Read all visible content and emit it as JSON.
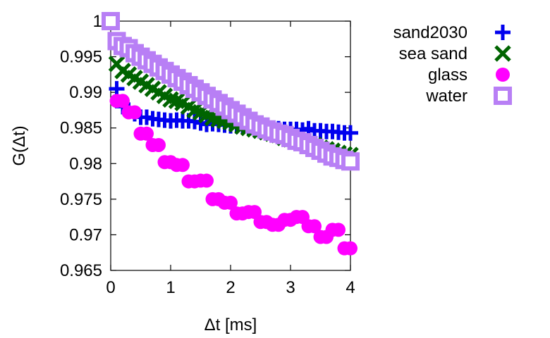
{
  "chart_data": {
    "type": "scatter",
    "title": "",
    "xlabel": "Δt [ms]",
    "ylabel": "G(Δt)",
    "xlim": [
      0,
      4
    ],
    "ylim": [
      0.965,
      1.0
    ],
    "xticks": [
      "0",
      "1",
      "2",
      "3",
      "4"
    ],
    "xtick_values": [
      0,
      1,
      2,
      3,
      4
    ],
    "yticks": [
      "0.965",
      "0.97",
      "0.975",
      "0.98",
      "0.985",
      "0.99",
      "0.995",
      "1"
    ],
    "ytick_values": [
      0.965,
      0.97,
      0.975,
      0.98,
      0.985,
      0.99,
      0.995,
      1.0
    ],
    "grid": false,
    "legend_position": "outside-right",
    "series": [
      {
        "name": "sand2030",
        "color": "#0000ee",
        "marker": "plus",
        "x": [
          0,
          0.1,
          0.2,
          0.3,
          0.4,
          0.5,
          0.6,
          0.7,
          0.8,
          0.9,
          1.0,
          1.1,
          1.2,
          1.3,
          1.4,
          1.5,
          1.6,
          1.7,
          1.8,
          1.9,
          2.0,
          2.1,
          2.2,
          2.3,
          2.4,
          2.5,
          2.6,
          2.7,
          2.8,
          2.9,
          3.0,
          3.1,
          3.2,
          3.3,
          3.4,
          3.5,
          3.6,
          3.7,
          3.8,
          3.9,
          4.0
        ],
        "y": [
          1.0,
          0.9905,
          0.988,
          0.9875,
          0.987,
          0.9865,
          0.9865,
          0.9863,
          0.9862,
          0.9861,
          0.986,
          0.9861,
          0.986,
          0.986,
          0.9859,
          0.9857,
          0.9855,
          0.9856,
          0.9855,
          0.9854,
          0.9853,
          0.9853,
          0.9852,
          0.9851,
          0.985,
          0.985,
          0.985,
          0.9849,
          0.9849,
          0.9848,
          0.9848,
          0.9848,
          0.9847,
          0.9849,
          0.9846,
          0.9846,
          0.9845,
          0.9845,
          0.9844,
          0.9843,
          0.9843
        ]
      },
      {
        "name": "sea sand",
        "color": "#006400",
        "marker": "cross",
        "x": [
          0,
          0.1,
          0.2,
          0.3,
          0.4,
          0.5,
          0.6,
          0.7,
          0.8,
          0.9,
          1.0,
          1.1,
          1.2,
          1.3,
          1.4,
          1.5,
          1.6,
          1.7,
          1.8,
          1.9,
          2.0,
          2.1,
          2.2,
          2.3,
          2.4,
          2.5,
          2.6,
          2.7,
          2.8,
          2.9,
          3.0,
          3.1,
          3.2,
          3.3,
          3.4,
          3.5,
          3.6,
          3.7,
          3.8,
          3.9,
          4.0
        ],
        "y": [
          1.0,
          0.994,
          0.993,
          0.9925,
          0.992,
          0.9915,
          0.991,
          0.9905,
          0.99,
          0.9895,
          0.989,
          0.9888,
          0.9885,
          0.988,
          0.9875,
          0.9872,
          0.9868,
          0.9864,
          0.9862,
          0.986,
          0.9858,
          0.9855,
          0.9852,
          0.985,
          0.9848,
          0.9846,
          0.9844,
          0.9842,
          0.984,
          0.9836,
          0.9834,
          0.9833,
          0.983,
          0.9828,
          0.9826,
          0.9822,
          0.982,
          0.9818,
          0.9815,
          0.9813,
          0.9812
        ]
      },
      {
        "name": "glass",
        "color": "#ff00ff",
        "marker": "filled-circle",
        "x": [
          0,
          0.1,
          0.2,
          0.3,
          0.4,
          0.5,
          0.6,
          0.7,
          0.8,
          0.9,
          1.0,
          1.1,
          1.2,
          1.3,
          1.4,
          1.5,
          1.6,
          1.7,
          1.8,
          1.9,
          2.0,
          2.1,
          2.2,
          2.3,
          2.4,
          2.5,
          2.6,
          2.7,
          2.8,
          2.9,
          3.0,
          3.1,
          3.2,
          3.3,
          3.4,
          3.5,
          3.6,
          3.7,
          3.8,
          3.9,
          4.0
        ],
        "y": [
          1.0,
          0.9888,
          0.9888,
          0.9872,
          0.9872,
          0.9842,
          0.9842,
          0.9826,
          0.9826,
          0.9802,
          0.9802,
          0.9798,
          0.9798,
          0.9775,
          0.9775,
          0.9776,
          0.9776,
          0.975,
          0.975,
          0.9745,
          0.9745,
          0.973,
          0.973,
          0.9732,
          0.9732,
          0.9718,
          0.9718,
          0.9714,
          0.9714,
          0.9721,
          0.9721,
          0.9725,
          0.9725,
          0.9712,
          0.9712,
          0.9697,
          0.9697,
          0.9707,
          0.9707,
          0.9681,
          0.9681
        ]
      },
      {
        "name": "water",
        "color": "#b87ff5",
        "marker": "open-square",
        "x": [
          0,
          0.1,
          0.2,
          0.3,
          0.4,
          0.5,
          0.6,
          0.7,
          0.8,
          0.9,
          1.0,
          1.1,
          1.2,
          1.3,
          1.4,
          1.5,
          1.6,
          1.7,
          1.8,
          1.9,
          2.0,
          2.1,
          2.2,
          2.3,
          2.4,
          2.5,
          2.6,
          2.7,
          2.8,
          2.9,
          3.0,
          3.1,
          3.2,
          3.3,
          3.4,
          3.5,
          3.6,
          3.7,
          3.8,
          3.9,
          4.0
        ],
        "y": [
          1.0,
          0.9972,
          0.9965,
          0.9962,
          0.9955,
          0.995,
          0.9945,
          0.994,
          0.9935,
          0.993,
          0.9925,
          0.992,
          0.9915,
          0.991,
          0.9905,
          0.99,
          0.9895,
          0.989,
          0.9885,
          0.988,
          0.9875,
          0.987,
          0.9865,
          0.986,
          0.9855,
          0.9852,
          0.9848,
          0.9845,
          0.9842,
          0.984,
          0.9836,
          0.9832,
          0.983,
          0.9826,
          0.9822,
          0.9818,
          0.9814,
          0.981,
          0.9808,
          0.9805,
          0.9803
        ]
      }
    ]
  }
}
